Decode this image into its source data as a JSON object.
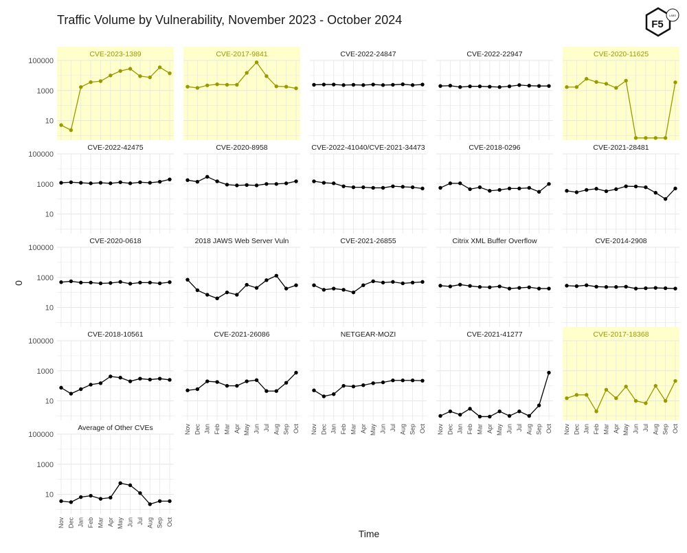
{
  "header": {
    "title": "Traffic Volume by Vulnerability, November 2023 - October 2024",
    "logo_text": "F5",
    "logo_subtext": "LABS"
  },
  "colors": {
    "highlight_fill": "#ffffcc",
    "highlight_line": "#999900",
    "normal_line": "#000000",
    "grid": "#e6e6e6",
    "axis_text": "#4d4d4d"
  },
  "chart_data": {
    "type": "line",
    "scale": "log10",
    "title": "Traffic Volume by Vulnerability, November 2023 - October 2024",
    "xlabel": "Time",
    "ylabel": "0",
    "ylim": [
      0.5,
      100000
    ],
    "yticks": [
      10,
      1000,
      100000
    ],
    "ytick_labels": [
      "10",
      "1000",
      "100000"
    ],
    "categories": [
      "Nov",
      "Dec",
      "Jan",
      "Feb",
      "Mar",
      "Apr",
      "May",
      "Jun",
      "Jul",
      "Aug",
      "Sep",
      "Oct"
    ],
    "panels": [
      {
        "name": "CVE-2023-1389",
        "highlight": true,
        "values": [
          5,
          2.3,
          1700,
          3600,
          4200,
          10000,
          20000,
          28000,
          9000,
          7500,
          35000,
          14000
        ]
      },
      {
        "name": "CVE-2017-9841",
        "highlight": true,
        "values": [
          1800,
          1500,
          2200,
          2600,
          2400,
          2400,
          15000,
          75000,
          9000,
          1900,
          1800,
          1400
        ]
      },
      {
        "name": "CVE-2022-24847",
        "highlight": false,
        "values": [
          2400,
          2500,
          2500,
          2300,
          2400,
          2300,
          2500,
          2300,
          2400,
          2600,
          2300,
          2500
        ]
      },
      {
        "name": "CVE-2022-22947",
        "highlight": false,
        "values": [
          2000,
          2100,
          1700,
          1900,
          1900,
          1800,
          1700,
          1900,
          2300,
          2100,
          2000,
          2000
        ]
      },
      {
        "name": "CVE-2020-11625",
        "highlight": true,
        "values": [
          1700,
          1700,
          6000,
          3700,
          2800,
          1500,
          4500,
          0.7,
          0.7,
          0.7,
          0.7,
          3500
        ]
      },
      {
        "name": "CVE-2022-42475",
        "highlight": false,
        "values": [
          1200,
          1300,
          1200,
          1100,
          1200,
          1100,
          1300,
          1100,
          1300,
          1200,
          1400,
          2000
        ]
      },
      {
        "name": "CVE-2020-8958",
        "highlight": false,
        "values": [
          1800,
          1400,
          3000,
          1500,
          900,
          800,
          850,
          800,
          1000,
          1000,
          1100,
          1500
        ]
      },
      {
        "name": "CVE-2022-41040/CVE-2021-34473",
        "highlight": false,
        "values": [
          1500,
          1200,
          1100,
          700,
          600,
          600,
          550,
          550,
          700,
          650,
          600,
          500
        ]
      },
      {
        "name": "CVE-2018-0296",
        "highlight": false,
        "values": [
          550,
          1100,
          1100,
          450,
          600,
          350,
          400,
          500,
          500,
          550,
          300,
          1000
        ]
      },
      {
        "name": "CVE-2021-28481",
        "highlight": false,
        "values": [
          350,
          280,
          400,
          480,
          330,
          450,
          700,
          680,
          600,
          260,
          100,
          500
        ]
      },
      {
        "name": "CVE-2020-0618",
        "highlight": false,
        "values": [
          480,
          550,
          450,
          450,
          400,
          420,
          500,
          380,
          450,
          450,
          400,
          480
        ]
      },
      {
        "name": "2018 JAWS Web Server Vuln",
        "highlight": false,
        "values": [
          700,
          140,
          70,
          40,
          100,
          70,
          320,
          200,
          650,
          1300,
          180,
          300
        ]
      },
      {
        "name": "CVE-2021-26855",
        "highlight": false,
        "values": [
          300,
          150,
          180,
          150,
          100,
          300,
          550,
          450,
          500,
          400,
          450,
          500
        ]
      },
      {
        "name": "Citrix XML Buffer Overflow",
        "highlight": false,
        "values": [
          280,
          250,
          330,
          270,
          230,
          220,
          250,
          180,
          200,
          220,
          180,
          180
        ]
      },
      {
        "name": "CVE-2014-2908",
        "highlight": false,
        "values": [
          280,
          260,
          300,
          240,
          230,
          230,
          240,
          180,
          190,
          200,
          190,
          180
        ]
      },
      {
        "name": "CVE-2018-10561",
        "highlight": false,
        "values": [
          75,
          30,
          60,
          120,
          150,
          420,
          350,
          200,
          300,
          260,
          300,
          250
        ]
      },
      {
        "name": "CVE-2021-26086",
        "highlight": false,
        "values": [
          50,
          60,
          200,
          180,
          100,
          100,
          200,
          240,
          45,
          45,
          160,
          750
        ]
      },
      {
        "name": "NETGEAR-MOZI",
        "highlight": false,
        "values": [
          50,
          20,
          28,
          100,
          90,
          110,
          150,
          170,
          230,
          230,
          230,
          220
        ]
      },
      {
        "name": "CVE-2021-41277",
        "highlight": false,
        "values": [
          1,
          2,
          1.2,
          3,
          0.9,
          0.9,
          2,
          1,
          2,
          1,
          5,
          750
        ]
      },
      {
        "name": "CVE-2017-18368",
        "highlight": true,
        "values": [
          15,
          25,
          25,
          2,
          55,
          15,
          90,
          10,
          7,
          100,
          10,
          210
        ]
      },
      {
        "name": "Average of Other CVEs",
        "highlight": false,
        "values": [
          3.5,
          3,
          6.5,
          8,
          5,
          6,
          55,
          40,
          12,
          2.2,
          3.5,
          3.5
        ]
      }
    ]
  }
}
